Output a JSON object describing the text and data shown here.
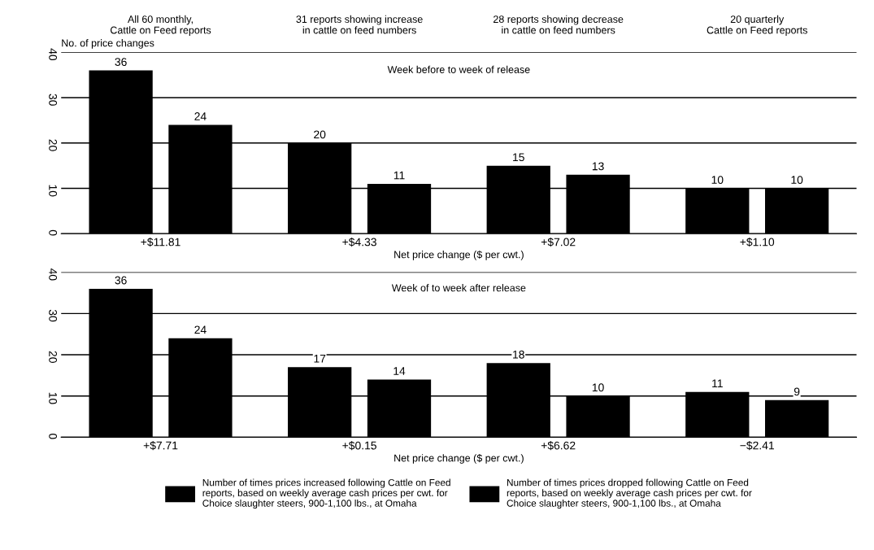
{
  "chart_data": [
    {
      "type": "bar",
      "subtitle": "Week before to week of release",
      "ylabel": "No. of price changes",
      "xlabel": "Net price change ($ per cwt.)",
      "categories": [
        "+$11.81",
        "+$4.33",
        "+$7.02",
        "+$1.10"
      ],
      "series": [
        {
          "color": "#000000",
          "values": [
            36,
            20,
            15,
            10
          ]
        },
        {
          "color": "#000000",
          "values": [
            24,
            11,
            13,
            10
          ]
        }
      ],
      "annotations": [
        "All 60 monthly,\nCattle on Feed reports",
        "31 reports showing increase\nin cattle on feed numbers",
        "28 reports showing decrease\nin cattle on feed numbers",
        "20 quarterly\nCattle on Feed reports"
      ],
      "ylim": [
        0,
        40
      ],
      "yticks": [
        0,
        10,
        20,
        30,
        40
      ],
      "grid": "y",
      "data_labels": true
    },
    {
      "type": "bar",
      "subtitle": "Week of to week after release",
      "xlabel": "Net price change ($ per cwt.)",
      "categories": [
        "+$7.71",
        "+$0.15",
        "+$6.62",
        "−$2.41"
      ],
      "series": [
        {
          "name": "Number of times prices increased following Cattle on Feed\nreports, based on weekly average cash prices per cwt. for\nChoice slaughter steers, 900-1,100 lbs., at Omaha",
          "color": "#000000",
          "values": [
            36,
            17,
            18,
            11
          ]
        },
        {
          "name": "Number of times prices dropped following Cattle on Feed\nreports, based on weekly average cash prices per cwt. for\nChoice slaughter steers, 900-1,100 lbs., at Omaha",
          "color": "#000000",
          "values": [
            24,
            14,
            10,
            9
          ]
        }
      ],
      "ylim": [
        0,
        40
      ],
      "yticks": [
        0,
        10,
        20,
        30,
        40
      ],
      "grid": "y",
      "data_labels": true,
      "legend": "bottom"
    }
  ]
}
